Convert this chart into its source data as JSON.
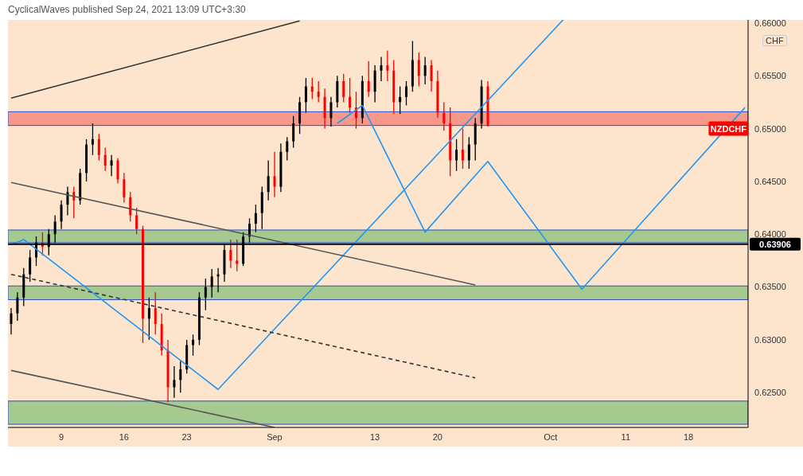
{
  "chart_data": {
    "type": "candlestick",
    "title": "CyclicalWaves published Sep 24, 2021 13:09 UTC+3:30",
    "categories": [
      null,
      null,
      null,
      null,
      null,
      null,
      null,
      null,
      "9",
      null,
      null,
      null,
      null,
      null,
      null,
      null,
      null,
      null,
      "16",
      null,
      null,
      null,
      null,
      null,
      null,
      null,
      null,
      null,
      "23",
      null,
      null,
      null,
      null,
      null,
      null,
      null,
      null,
      null,
      null,
      null,
      null,
      null,
      "Sep",
      null,
      null,
      null,
      null,
      null,
      null,
      null,
      null,
      null,
      null,
      null,
      null,
      null,
      null,
      null,
      "13",
      null,
      null,
      null,
      null,
      null,
      null,
      null,
      null,
      null,
      "20",
      null,
      null,
      null,
      null,
      null,
      null,
      null,
      null,
      null,
      null,
      null,
      null,
      null,
      null,
      null,
      null,
      null,
      "Oct",
      null,
      null,
      null,
      null,
      null,
      null,
      null,
      null,
      null,
      null,
      null,
      "11",
      null,
      null,
      null,
      null,
      null,
      null,
      null,
      null,
      null,
      "18",
      null,
      null,
      null,
      null,
      null,
      null,
      null,
      null,
      null
    ],
    "ohlc": [
      [
        0.6315,
        0.633,
        0.6305,
        0.6325
      ],
      [
        0.6325,
        0.6345,
        0.6318,
        0.634
      ],
      [
        0.634,
        0.6368,
        0.6332,
        0.6362
      ],
      [
        0.6362,
        0.6385,
        0.6355,
        0.6378
      ],
      [
        0.6378,
        0.6398,
        0.637,
        0.6392
      ],
      [
        0.6392,
        0.6402,
        0.638,
        0.6388
      ],
      [
        0.6388,
        0.6405,
        0.638,
        0.64
      ],
      [
        0.64,
        0.6418,
        0.6392,
        0.6412
      ],
      [
        0.6412,
        0.6432,
        0.6405,
        0.6428
      ],
      [
        0.6428,
        0.6445,
        0.6418,
        0.644
      ],
      [
        0.644,
        0.6445,
        0.6415,
        0.6432
      ],
      [
        0.6432,
        0.6462,
        0.6428,
        0.6458
      ],
      [
        0.6458,
        0.649,
        0.645,
        0.6485
      ],
      [
        0.6485,
        0.6505,
        0.6475,
        0.649
      ],
      [
        0.649,
        0.6495,
        0.647,
        0.6475
      ],
      [
        0.6475,
        0.6482,
        0.646,
        0.6465
      ],
      [
        0.6465,
        0.6475,
        0.6455,
        0.647
      ],
      [
        0.647,
        0.6472,
        0.6448,
        0.6452
      ],
      [
        0.6452,
        0.6458,
        0.643,
        0.6435
      ],
      [
        0.6435,
        0.644,
        0.6412,
        0.6418
      ],
      [
        0.6418,
        0.6425,
        0.64,
        0.6405
      ],
      [
        0.6405,
        0.6408,
        0.6297,
        0.632
      ],
      [
        0.632,
        0.634,
        0.63,
        0.633
      ],
      [
        0.633,
        0.6345,
        0.6305,
        0.6315
      ],
      [
        0.6315,
        0.6325,
        0.6285,
        0.629
      ],
      [
        0.629,
        0.63,
        0.6241,
        0.6255
      ],
      [
        0.6255,
        0.6275,
        0.6245,
        0.6262
      ],
      [
        0.6262,
        0.628,
        0.625,
        0.6272
      ],
      [
        0.6272,
        0.63,
        0.6268,
        0.6295
      ],
      [
        0.6295,
        0.6305,
        0.6285,
        0.63
      ],
      [
        0.63,
        0.6345,
        0.6295,
        0.634
      ],
      [
        0.634,
        0.6358,
        0.6328,
        0.635
      ],
      [
        0.635,
        0.6367,
        0.634,
        0.636
      ],
      [
        0.636,
        0.6368,
        0.6345,
        0.6362
      ],
      [
        0.6362,
        0.639,
        0.6355,
        0.6385
      ],
      [
        0.6385,
        0.6395,
        0.6368,
        0.6375
      ],
      [
        0.6375,
        0.6395,
        0.6365,
        0.6372
      ],
      [
        0.6372,
        0.6402,
        0.637,
        0.6398
      ],
      [
        0.6398,
        0.6415,
        0.6392,
        0.641
      ],
      [
        0.641,
        0.6428,
        0.6402,
        0.642
      ],
      [
        0.642,
        0.6445,
        0.6405,
        0.644
      ],
      [
        0.644,
        0.647,
        0.6432,
        0.6455
      ],
      [
        0.6455,
        0.6478,
        0.6435,
        0.6445
      ],
      [
        0.6445,
        0.6486,
        0.644,
        0.6478
      ],
      [
        0.6478,
        0.6492,
        0.647,
        0.6488
      ],
      [
        0.6488,
        0.6512,
        0.6482,
        0.6505
      ],
      [
        0.6505,
        0.653,
        0.6495,
        0.6525
      ],
      [
        0.6525,
        0.6548,
        0.6515,
        0.654
      ],
      [
        0.654,
        0.6548,
        0.6528,
        0.6535
      ],
      [
        0.6535,
        0.6545,
        0.6525,
        0.653
      ],
      [
        0.653,
        0.6538,
        0.65,
        0.651
      ],
      [
        0.651,
        0.653,
        0.6502,
        0.6525
      ],
      [
        0.6525,
        0.655,
        0.652,
        0.6545
      ],
      [
        0.6545,
        0.6552,
        0.6525,
        0.653
      ],
      [
        0.653,
        0.6548,
        0.6515,
        0.652
      ],
      [
        0.652,
        0.6535,
        0.65,
        0.651
      ],
      [
        0.651,
        0.655,
        0.6505,
        0.6545
      ],
      [
        0.6545,
        0.6564,
        0.653,
        0.6535
      ],
      [
        0.6535,
        0.656,
        0.6525,
        0.6555
      ],
      [
        0.6555,
        0.6568,
        0.6545,
        0.656
      ],
      [
        0.656,
        0.6574,
        0.6545,
        0.6555
      ],
      [
        0.6555,
        0.6565,
        0.6514,
        0.6525
      ],
      [
        0.6525,
        0.654,
        0.6514,
        0.653
      ],
      [
        0.653,
        0.6545,
        0.6522,
        0.654
      ],
      [
        0.654,
        0.6583,
        0.6535,
        0.6565
      ],
      [
        0.6565,
        0.6572,
        0.654,
        0.655
      ],
      [
        0.655,
        0.6568,
        0.6542,
        0.656
      ],
      [
        0.656,
        0.6565,
        0.6535,
        0.6545
      ],
      [
        0.6545,
        0.6555,
        0.651,
        0.6515
      ],
      [
        0.6515,
        0.6525,
        0.6498,
        0.6505
      ],
      [
        0.6505,
        0.652,
        0.6455,
        0.647
      ],
      [
        0.647,
        0.649,
        0.646,
        0.648
      ],
      [
        0.648,
        0.65,
        0.6462,
        0.647
      ],
      [
        0.647,
        0.6492,
        0.6462,
        0.6485
      ],
      [
        0.6485,
        0.651,
        0.647,
        0.6505
      ],
      [
        0.6505,
        0.6546,
        0.65,
        0.654
      ],
      [
        0.654,
        0.6545,
        0.6502,
        0.6503
      ],
      null,
      null,
      null,
      null,
      null,
      null,
      null,
      null,
      null,
      null,
      null,
      null,
      null,
      null,
      null,
      null,
      null,
      null,
      null,
      null,
      null,
      null,
      null,
      null,
      null,
      null,
      null,
      null,
      null,
      null,
      null,
      null,
      null,
      null,
      null,
      null,
      null,
      null,
      null,
      null,
      null
    ],
    "colors": [
      "#000000",
      "#000000",
      "#000000",
      "#000000",
      "#000000",
      "#ff0000",
      "#000000",
      "#000000",
      "#000000",
      "#000000",
      "#ff0000",
      "#000000",
      "#000000",
      "#000000",
      "#ff0000",
      "#ff0000",
      "#000000",
      "#ff0000",
      "#ff0000",
      "#ff0000",
      "#ff0000",
      "#ff0000",
      "#000000",
      "#ff0000",
      "#ff0000",
      "#ff0000",
      "#000000",
      "#000000",
      "#000000",
      "#000000",
      "#000000",
      "#000000",
      "#000000",
      "#000000",
      "#000000",
      "#ff0000",
      "#ff0000",
      "#000000",
      "#000000",
      "#000000",
      "#000000",
      "#000000",
      "#ff0000",
      "#000000",
      "#000000",
      "#000000",
      "#000000",
      "#000000",
      "#ff0000",
      "#ff0000",
      "#ff0000",
      "#000000",
      "#000000",
      "#ff0000",
      "#ff0000",
      "#ff0000",
      "#000000",
      "#ff0000",
      "#000000",
      "#000000",
      "#ff0000",
      "#ff0000",
      "#000000",
      "#000000",
      "#000000",
      "#ff0000",
      "#000000",
      "#ff0000",
      "#ff0000",
      "#ff0000",
      "#ff0000",
      "#000000",
      "#ff0000",
      "#000000",
      "#000000",
      "#000000",
      "#ff0000",
      null,
      null,
      null,
      null,
      null,
      null,
      null,
      null,
      null,
      null,
      null,
      null,
      null,
      null,
      null,
      null,
      null,
      null,
      null,
      null,
      null,
      null,
      null,
      null,
      null,
      null,
      null,
      null,
      null,
      null,
      null,
      null,
      null,
      null,
      null,
      null,
      null,
      null,
      null,
      null,
      null
    ],
    "series": [
      {
        "type": "line",
        "color": "#2196f3",
        "values": [
          0.639,
          null,
          0.6395,
          null,
          null,
          null,
          null,
          null,
          null,
          null,
          null,
          null,
          null,
          null,
          null,
          null,
          null,
          null,
          null,
          null,
          null,
          null,
          null,
          null,
          null,
          null,
          null,
          null,
          null,
          null,
          null,
          null,
          null,
          0.6253,
          null,
          null,
          null,
          null,
          null,
          null,
          null,
          null,
          null,
          null,
          null,
          null,
          null,
          null,
          null,
          null,
          null,
          null,
          null,
          null,
          null,
          null,
          null,
          null,
          null,
          null,
          null,
          null,
          null,
          null,
          null,
          null,
          null,
          null,
          null,
          null,
          null,
          null,
          null,
          null,
          null,
          null,
          null,
          null,
          null,
          null,
          null,
          null,
          null,
          null,
          null,
          null,
          null,
          null,
          0.6603,
          null,
          null,
          null,
          null,
          null,
          null,
          null,
          null,
          null,
          null,
          null,
          null,
          null,
          null,
          null,
          null,
          null,
          null,
          null,
          null,
          null,
          null,
          null,
          null,
          null,
          null,
          null,
          null,
          null
        ]
      },
      {
        "type": "line",
        "color": "#2196f3",
        "values": [
          null,
          null,
          null,
          null,
          null,
          null,
          null,
          null,
          null,
          null,
          null,
          null,
          null,
          null,
          null,
          null,
          null,
          null,
          null,
          null,
          null,
          null,
          null,
          null,
          null,
          null,
          null,
          null,
          null,
          null,
          null,
          null,
          null,
          null,
          null,
          null,
          null,
          null,
          null,
          null,
          null,
          null,
          null,
          null,
          null,
          null,
          null,
          null,
          null,
          null,
          null,
          null,
          0.6505,
          null,
          null,
          null,
          0.6522,
          null,
          null,
          null,
          null,
          null,
          null,
          null,
          null,
          null,
          0.6402,
          null,
          null,
          null,
          null,
          null,
          null,
          null,
          null,
          null,
          0.6469,
          null,
          null,
          null,
          null,
          null,
          null,
          null,
          null,
          null,
          null,
          null,
          null,
          null,
          null,
          0.6348,
          null,
          null,
          null,
          null,
          null,
          null,
          null,
          null,
          null,
          null,
          null,
          null,
          null,
          null,
          null,
          null,
          null,
          null,
          null,
          null,
          null,
          null,
          null,
          null,
          null,
          0.652
        ]
      },
      {
        "type": "line",
        "color": "#333333",
        "values": [
          0.6529,
          null,
          null,
          null,
          null,
          null,
          null,
          null,
          null,
          null,
          null,
          null,
          null,
          null,
          null,
          null,
          null,
          null,
          null,
          null,
          null,
          null,
          null,
          null,
          null,
          null,
          null,
          null,
          null,
          null,
          null,
          null,
          null,
          null,
          null,
          null,
          null,
          null,
          null,
          null,
          null,
          null,
          null,
          null,
          null,
          null,
          0.6602,
          null,
          null,
          null,
          null,
          null,
          null,
          null,
          null,
          null,
          null,
          null,
          null,
          null,
          null,
          null,
          null,
          null,
          null,
          null,
          null,
          null,
          null,
          null,
          null,
          null,
          null,
          null,
          null,
          null,
          null,
          null,
          null,
          null,
          null,
          null,
          null,
          null,
          null,
          null,
          null,
          null,
          null,
          null,
          null,
          null,
          null,
          null,
          null,
          null,
          null,
          null,
          null,
          null,
          null,
          null,
          null,
          null,
          null,
          null,
          null,
          null,
          null,
          null,
          null,
          null,
          null,
          null,
          null,
          null,
          null,
          null
        ]
      },
      {
        "type": "line",
        "color": "#555555",
        "values": [
          0.6449,
          null,
          null,
          null,
          null,
          null,
          null,
          null,
          null,
          null,
          null,
          null,
          null,
          null,
          null,
          null,
          null,
          null,
          null,
          null,
          null,
          null,
          null,
          null,
          null,
          null,
          null,
          null,
          null,
          null,
          null,
          null,
          null,
          null,
          null,
          null,
          null,
          null,
          null,
          null,
          null,
          null,
          null,
          null,
          null,
          null,
          null,
          null,
          null,
          null,
          null,
          null,
          null,
          null,
          null,
          null,
          null,
          null,
          null,
          null,
          null,
          null,
          null,
          null,
          null,
          null,
          null,
          null,
          null,
          null,
          null,
          null,
          null,
          null,
          0.6352,
          null,
          null,
          null,
          null,
          null,
          null,
          null,
          null,
          null,
          null,
          null,
          null,
          null,
          null,
          null,
          null,
          null,
          null,
          null,
          null,
          null,
          null,
          null,
          null,
          null,
          null,
          null,
          null,
          null,
          null,
          null,
          null,
          null,
          null,
          null,
          null,
          null,
          null,
          null,
          null,
          null,
          null,
          null
        ]
      },
      {
        "type": "line",
        "color": "#333333",
        "line_style": "dashed",
        "values": [
          0.6362,
          null,
          null,
          null,
          null,
          null,
          null,
          null,
          null,
          null,
          null,
          null,
          null,
          null,
          null,
          null,
          null,
          null,
          null,
          null,
          null,
          null,
          null,
          null,
          null,
          null,
          null,
          null,
          null,
          null,
          null,
          null,
          null,
          null,
          null,
          null,
          null,
          null,
          null,
          null,
          null,
          null,
          null,
          null,
          null,
          null,
          null,
          null,
          null,
          null,
          null,
          null,
          null,
          null,
          null,
          null,
          null,
          null,
          null,
          null,
          null,
          null,
          null,
          null,
          null,
          null,
          null,
          null,
          null,
          null,
          null,
          null,
          null,
          null,
          0.6264,
          null,
          null,
          null,
          null,
          null,
          null,
          null,
          null,
          null,
          null,
          null,
          null,
          null,
          null,
          null,
          null,
          null,
          null,
          null,
          null,
          null,
          null,
          null,
          null,
          null,
          null,
          null,
          null,
          null,
          null,
          null,
          null,
          null,
          null,
          null,
          null,
          null,
          null,
          null,
          null,
          null,
          null,
          null
        ]
      },
      {
        "type": "line",
        "color": "#555555",
        "values": [
          0.6271,
          null,
          null,
          null,
          null,
          null,
          null,
          null,
          null,
          null,
          null,
          null,
          null,
          null,
          null,
          null,
          null,
          null,
          null,
          null,
          null,
          null,
          null,
          null,
          null,
          null,
          null,
          null,
          null,
          null,
          null,
          null,
          null,
          null,
          null,
          null,
          null,
          null,
          null,
          null,
          null,
          null,
          0.6217,
          null,
          null,
          null,
          null,
          null,
          null,
          null,
          null,
          null,
          null,
          null,
          null,
          null,
          null,
          null,
          null,
          null,
          null,
          null,
          null,
          null,
          null,
          null,
          null,
          null,
          null,
          null,
          null,
          null,
          null,
          null,
          null,
          null,
          null,
          null,
          null,
          null,
          null,
          null,
          null,
          null,
          null,
          null,
          null,
          null,
          null,
          null,
          null,
          null,
          null,
          null,
          null,
          null,
          null,
          null,
          null,
          null,
          null,
          null,
          null,
          null,
          null,
          null,
          null,
          null,
          null,
          null,
          null,
          null,
          null,
          null,
          null,
          null,
          null,
          null
        ]
      }
    ],
    "ylim": [
      0.6217,
      0.6603
    ],
    "yticks": [
      {
        "value": 0.625,
        "label": "0.62500"
      },
      {
        "value": 0.63,
        "label": "0.63000"
      },
      {
        "value": 0.635,
        "label": "0.63500"
      },
      {
        "value": 0.64,
        "label": "0.64000"
      },
      {
        "value": 0.645,
        "label": "0.64500"
      },
      {
        "value": 0.65,
        "label": "0.65000"
      },
      {
        "value": 0.655,
        "label": "0.65500"
      },
      {
        "value": 0.66,
        "label": "0.66000"
      }
    ],
    "ref_lines": [
      {
        "axis": "y",
        "value": 0.63906,
        "label": "0.63906",
        "color": "#000000"
      }
    ],
    "bands": [
      {
        "axis": "y",
        "from": 0.6503,
        "to": 0.6516,
        "color": "#f7998a"
      },
      {
        "axis": "y",
        "from": 0.6392,
        "to": 0.6404,
        "color": "#a5c98f"
      },
      {
        "axis": "y",
        "from": 0.6338,
        "to": 0.6351,
        "color": "#a5c98f"
      },
      {
        "axis": "y",
        "from": 0.622,
        "to": 0.6242,
        "color": "#a5c98f"
      }
    ],
    "annotations": [
      {
        "text": "NZDCHF",
        "y": 0.65
      },
      "CHF"
    ]
  }
}
